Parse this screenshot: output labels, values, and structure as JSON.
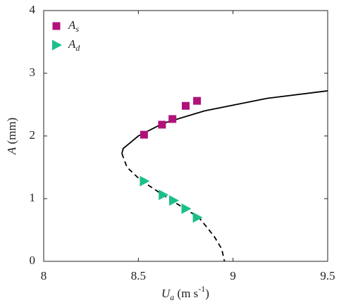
{
  "chart_data": {
    "type": "scatter",
    "xlabel": "U_a (m s^{-1})",
    "ylabel": "A (mm)",
    "xlim": [
      8,
      9.5
    ],
    "ylim": [
      0,
      4
    ],
    "xticks": [
      8,
      8.5,
      9,
      9.5
    ],
    "yticks": [
      0,
      1,
      2,
      3,
      4
    ],
    "legend": "upper left",
    "series": [
      {
        "name": "A_s",
        "color": "#b0127a",
        "marker": "square",
        "x": [
          8.53,
          8.625,
          8.68,
          8.75,
          8.81
        ],
        "values": [
          2.02,
          2.18,
          2.27,
          2.48,
          2.56
        ]
      },
      {
        "name": "A_d",
        "color": "#1cbf8c",
        "marker": "triangle",
        "x": [
          8.53,
          8.63,
          8.685,
          8.75,
          8.81
        ],
        "values": [
          1.28,
          1.06,
          0.97,
          0.84,
          0.7
        ]
      },
      {
        "type": "line",
        "color": "#000000",
        "dash": false,
        "x": [
          8.413,
          8.42,
          8.46,
          8.5,
          8.63,
          8.85,
          9.18,
          9.5
        ],
        "values": [
          1.72,
          1.8,
          1.9,
          2.0,
          2.2,
          2.4,
          2.6,
          2.72
        ]
      },
      {
        "type": "line",
        "color": "#000000",
        "dash": true,
        "x": [
          8.413,
          8.44,
          8.51,
          8.66,
          8.82,
          8.9,
          8.94,
          8.955
        ],
        "values": [
          1.72,
          1.5,
          1.3,
          1.0,
          0.7,
          0.4,
          0.2,
          0
        ]
      }
    ]
  }
}
